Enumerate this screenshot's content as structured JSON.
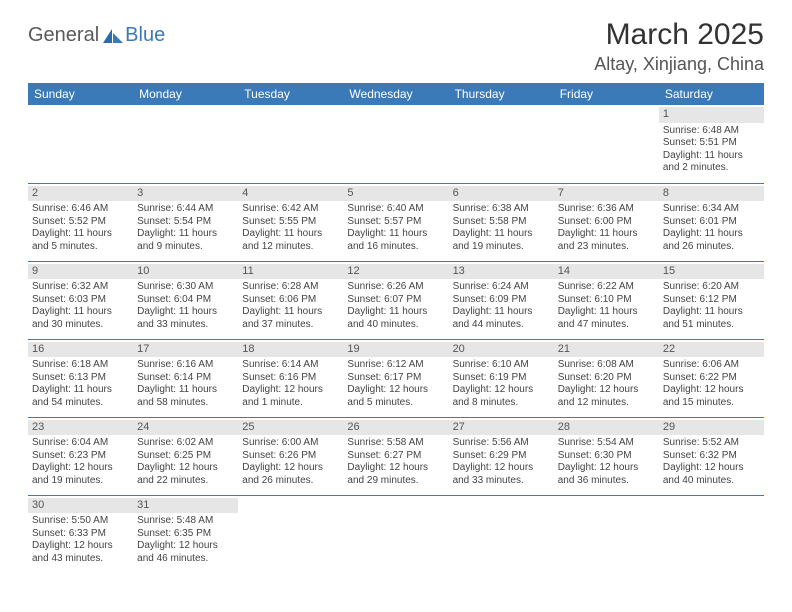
{
  "logo": {
    "part1": "General",
    "part2": "Blue"
  },
  "title": "March 2025",
  "location": "Altay, Xinjiang, China",
  "colors": {
    "header_bg": "#3a7ab8",
    "header_text": "#ffffff",
    "daynum_bg": "#e6e6e6",
    "border": "#3a7ab8",
    "text": "#444444"
  },
  "weekdays": [
    "Sunday",
    "Monday",
    "Tuesday",
    "Wednesday",
    "Thursday",
    "Friday",
    "Saturday"
  ],
  "weeks": [
    [
      null,
      null,
      null,
      null,
      null,
      null,
      {
        "n": "1",
        "sr": "Sunrise: 6:48 AM",
        "ss": "Sunset: 5:51 PM",
        "dl": "Daylight: 11 hours and 2 minutes."
      }
    ],
    [
      {
        "n": "2",
        "sr": "Sunrise: 6:46 AM",
        "ss": "Sunset: 5:52 PM",
        "dl": "Daylight: 11 hours and 5 minutes."
      },
      {
        "n": "3",
        "sr": "Sunrise: 6:44 AM",
        "ss": "Sunset: 5:54 PM",
        "dl": "Daylight: 11 hours and 9 minutes."
      },
      {
        "n": "4",
        "sr": "Sunrise: 6:42 AM",
        "ss": "Sunset: 5:55 PM",
        "dl": "Daylight: 11 hours and 12 minutes."
      },
      {
        "n": "5",
        "sr": "Sunrise: 6:40 AM",
        "ss": "Sunset: 5:57 PM",
        "dl": "Daylight: 11 hours and 16 minutes."
      },
      {
        "n": "6",
        "sr": "Sunrise: 6:38 AM",
        "ss": "Sunset: 5:58 PM",
        "dl": "Daylight: 11 hours and 19 minutes."
      },
      {
        "n": "7",
        "sr": "Sunrise: 6:36 AM",
        "ss": "Sunset: 6:00 PM",
        "dl": "Daylight: 11 hours and 23 minutes."
      },
      {
        "n": "8",
        "sr": "Sunrise: 6:34 AM",
        "ss": "Sunset: 6:01 PM",
        "dl": "Daylight: 11 hours and 26 minutes."
      }
    ],
    [
      {
        "n": "9",
        "sr": "Sunrise: 6:32 AM",
        "ss": "Sunset: 6:03 PM",
        "dl": "Daylight: 11 hours and 30 minutes."
      },
      {
        "n": "10",
        "sr": "Sunrise: 6:30 AM",
        "ss": "Sunset: 6:04 PM",
        "dl": "Daylight: 11 hours and 33 minutes."
      },
      {
        "n": "11",
        "sr": "Sunrise: 6:28 AM",
        "ss": "Sunset: 6:06 PM",
        "dl": "Daylight: 11 hours and 37 minutes."
      },
      {
        "n": "12",
        "sr": "Sunrise: 6:26 AM",
        "ss": "Sunset: 6:07 PM",
        "dl": "Daylight: 11 hours and 40 minutes."
      },
      {
        "n": "13",
        "sr": "Sunrise: 6:24 AM",
        "ss": "Sunset: 6:09 PM",
        "dl": "Daylight: 11 hours and 44 minutes."
      },
      {
        "n": "14",
        "sr": "Sunrise: 6:22 AM",
        "ss": "Sunset: 6:10 PM",
        "dl": "Daylight: 11 hours and 47 minutes."
      },
      {
        "n": "15",
        "sr": "Sunrise: 6:20 AM",
        "ss": "Sunset: 6:12 PM",
        "dl": "Daylight: 11 hours and 51 minutes."
      }
    ],
    [
      {
        "n": "16",
        "sr": "Sunrise: 6:18 AM",
        "ss": "Sunset: 6:13 PM",
        "dl": "Daylight: 11 hours and 54 minutes."
      },
      {
        "n": "17",
        "sr": "Sunrise: 6:16 AM",
        "ss": "Sunset: 6:14 PM",
        "dl": "Daylight: 11 hours and 58 minutes."
      },
      {
        "n": "18",
        "sr": "Sunrise: 6:14 AM",
        "ss": "Sunset: 6:16 PM",
        "dl": "Daylight: 12 hours and 1 minute."
      },
      {
        "n": "19",
        "sr": "Sunrise: 6:12 AM",
        "ss": "Sunset: 6:17 PM",
        "dl": "Daylight: 12 hours and 5 minutes."
      },
      {
        "n": "20",
        "sr": "Sunrise: 6:10 AM",
        "ss": "Sunset: 6:19 PM",
        "dl": "Daylight: 12 hours and 8 minutes."
      },
      {
        "n": "21",
        "sr": "Sunrise: 6:08 AM",
        "ss": "Sunset: 6:20 PM",
        "dl": "Daylight: 12 hours and 12 minutes."
      },
      {
        "n": "22",
        "sr": "Sunrise: 6:06 AM",
        "ss": "Sunset: 6:22 PM",
        "dl": "Daylight: 12 hours and 15 minutes."
      }
    ],
    [
      {
        "n": "23",
        "sr": "Sunrise: 6:04 AM",
        "ss": "Sunset: 6:23 PM",
        "dl": "Daylight: 12 hours and 19 minutes."
      },
      {
        "n": "24",
        "sr": "Sunrise: 6:02 AM",
        "ss": "Sunset: 6:25 PM",
        "dl": "Daylight: 12 hours and 22 minutes."
      },
      {
        "n": "25",
        "sr": "Sunrise: 6:00 AM",
        "ss": "Sunset: 6:26 PM",
        "dl": "Daylight: 12 hours and 26 minutes."
      },
      {
        "n": "26",
        "sr": "Sunrise: 5:58 AM",
        "ss": "Sunset: 6:27 PM",
        "dl": "Daylight: 12 hours and 29 minutes."
      },
      {
        "n": "27",
        "sr": "Sunrise: 5:56 AM",
        "ss": "Sunset: 6:29 PM",
        "dl": "Daylight: 12 hours and 33 minutes."
      },
      {
        "n": "28",
        "sr": "Sunrise: 5:54 AM",
        "ss": "Sunset: 6:30 PM",
        "dl": "Daylight: 12 hours and 36 minutes."
      },
      {
        "n": "29",
        "sr": "Sunrise: 5:52 AM",
        "ss": "Sunset: 6:32 PM",
        "dl": "Daylight: 12 hours and 40 minutes."
      }
    ],
    [
      {
        "n": "30",
        "sr": "Sunrise: 5:50 AM",
        "ss": "Sunset: 6:33 PM",
        "dl": "Daylight: 12 hours and 43 minutes."
      },
      {
        "n": "31",
        "sr": "Sunrise: 5:48 AM",
        "ss": "Sunset: 6:35 PM",
        "dl": "Daylight: 12 hours and 46 minutes."
      },
      null,
      null,
      null,
      null,
      null
    ]
  ]
}
